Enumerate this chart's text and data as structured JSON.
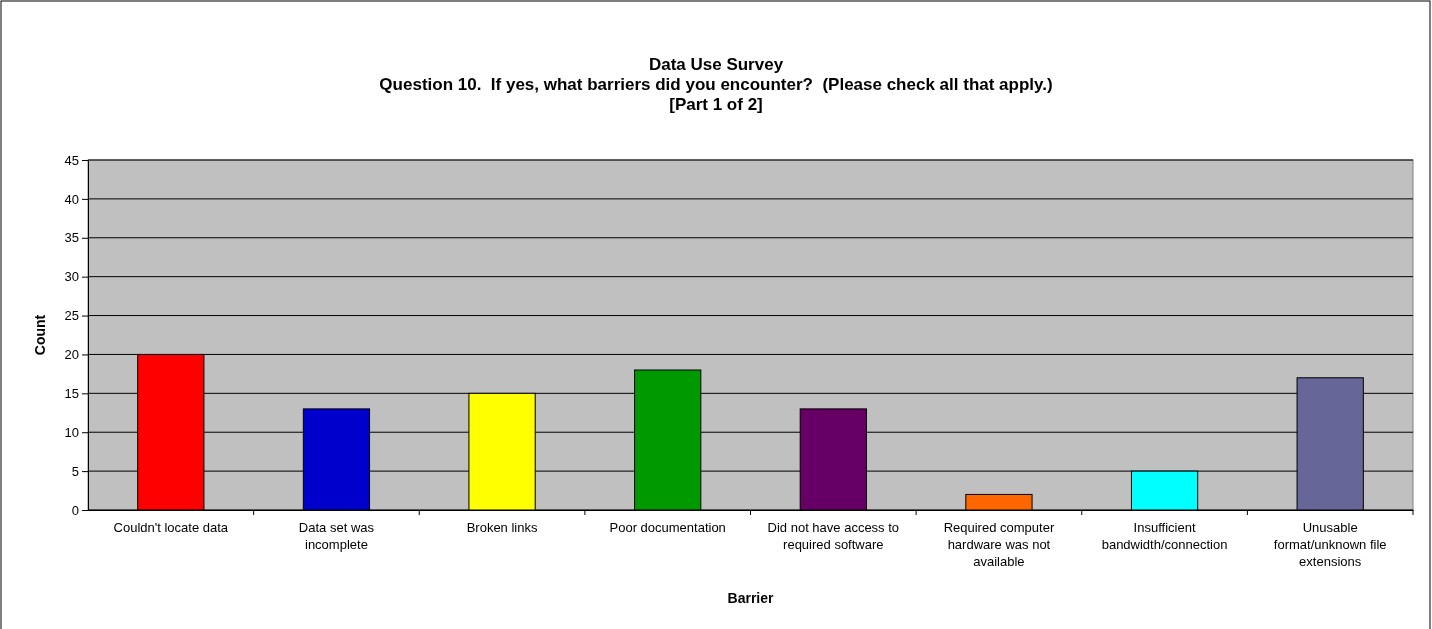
{
  "chart_data": {
    "type": "bar",
    "title": "Data Use Survey",
    "subtitle": "Question 10.  If yes, what barriers did you encounter?  (Please check all that apply.)\n[Part 1 of 2]",
    "xlabel": "Barrier",
    "ylabel": "Count",
    "categories": [
      "Couldn't locate data",
      "Data set was incomplete",
      "Broken links",
      "Poor documentation",
      "Did not have access to required software",
      "Required computer hardware was not available",
      "Insufficient bandwidth/connection",
      "Unusable format/unknown file extensions"
    ],
    "values": [
      20,
      13,
      15,
      18,
      13,
      2,
      5,
      17
    ],
    "colors": [
      "#ff0000",
      "#0000cc",
      "#ffff00",
      "#009900",
      "#660066",
      "#ff6600",
      "#00ffff",
      "#666699"
    ],
    "ylim": [
      0,
      45
    ],
    "yticks": [
      0,
      5,
      10,
      15,
      20,
      25,
      30,
      35,
      40,
      45
    ],
    "grid": "y"
  }
}
